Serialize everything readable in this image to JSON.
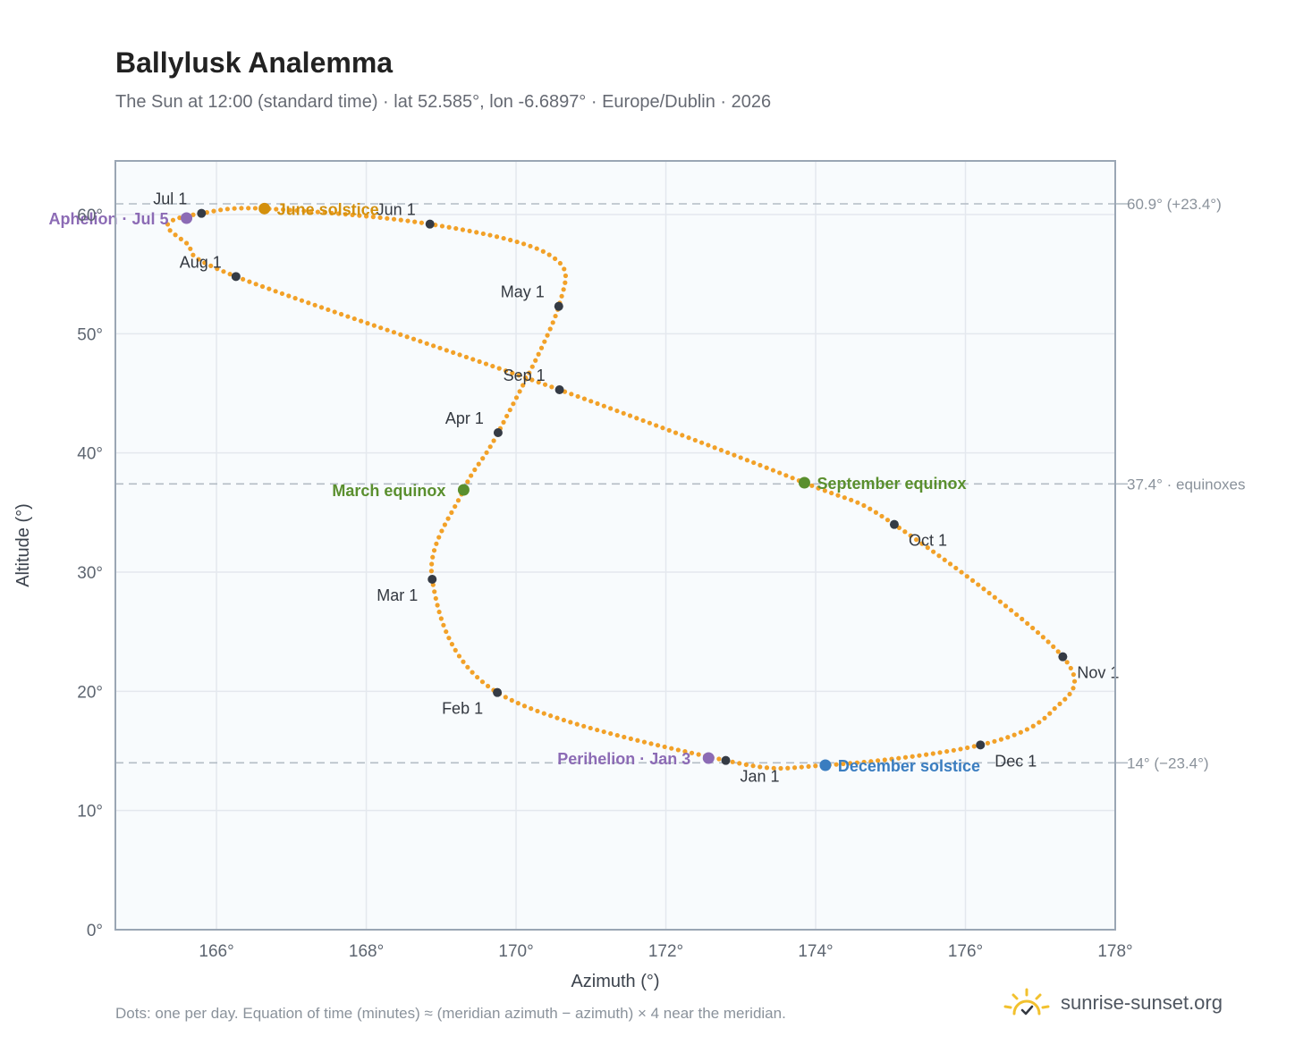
{
  "title": "Ballylusk Analemma",
  "subtitle": "The Sun at 12:00 (standard time) · lat 52.585°, lon -6.6897° · Europe/Dublin · 2026",
  "footnote": "Dots: one per day. Equation of time (minutes) ≈ (meridian azimuth − azimuth) × 4 near the meridian.",
  "brand": "sunrise-sunset.org",
  "colors": {
    "curve": "#f2a128",
    "month_marker": "#353b45",
    "solstice_june": "#d3900d",
    "solstice_december": "#3a7dc0",
    "equinox": "#5a8f2e",
    "apsis": "#8c6bb5",
    "grid": "#e4e8ee",
    "plot_background": "#f8fbfd",
    "frame": "#9aa6b4",
    "reference_line": "#b3bcc5",
    "brand_sun": "#f2c12e"
  },
  "chart_data": {
    "type": "scatter",
    "xlabel": "Azimuth (°)",
    "ylabel": "Altitude (°)",
    "xlim": [
      164.65,
      178
    ],
    "ylim": [
      0,
      64.5
    ],
    "xticks": [
      166,
      168,
      170,
      172,
      174,
      176,
      178
    ],
    "yticks": [
      0,
      10,
      20,
      30,
      40,
      50,
      60
    ],
    "xtick_suffix": "°",
    "ytick_suffix": "°",
    "grid": true,
    "reference_lines": [
      {
        "y": 60.9,
        "label": "60.9° (+23.4°)"
      },
      {
        "y": 37.4,
        "label": "37.4° · equinoxes"
      },
      {
        "y": 14.0,
        "label": "14° (−23.4°)"
      }
    ],
    "path_points": [
      {
        "x": 172.8,
        "y": 14.2
      },
      {
        "x": 169.75,
        "y": 19.9
      },
      {
        "x": 168.88,
        "y": 29.4
      },
      {
        "x": 169.3,
        "y": 36.9
      },
      {
        "x": 169.76,
        "y": 41.7
      },
      {
        "x": 170.57,
        "y": 52.3
      },
      {
        "x": 170.45,
        "y": 56.6
      },
      {
        "x": 168.85,
        "y": 59.2
      },
      {
        "x": 166.64,
        "y": 60.5
      },
      {
        "x": 165.8,
        "y": 60.1
      },
      {
        "x": 165.35,
        "y": 59.2
      },
      {
        "x": 165.6,
        "y": 57.6
      },
      {
        "x": 166.26,
        "y": 54.8
      },
      {
        "x": 170.58,
        "y": 45.3
      },
      {
        "x": 173.85,
        "y": 37.5
      },
      {
        "x": 175.05,
        "y": 34.0
      },
      {
        "x": 177.3,
        "y": 22.9
      },
      {
        "x": 177.15,
        "y": 18.3
      },
      {
        "x": 176.2,
        "y": 15.5
      },
      {
        "x": 174.13,
        "y": 13.8
      },
      {
        "x": 172.8,
        "y": 14.2
      }
    ],
    "month_markers": [
      {
        "label": "Jan 1",
        "x": 172.8,
        "y": 14.2,
        "label_pos": "below-right"
      },
      {
        "label": "Feb 1",
        "x": 169.75,
        "y": 19.9,
        "label_pos": "below-left"
      },
      {
        "label": "Mar 1",
        "x": 168.88,
        "y": 29.4,
        "label_pos": "below-left"
      },
      {
        "label": "Apr 1",
        "x": 169.76,
        "y": 41.7,
        "label_pos": "above-left"
      },
      {
        "label": "May 1",
        "x": 170.57,
        "y": 52.3,
        "label_pos": "above-left"
      },
      {
        "label": "Jun 1",
        "x": 168.85,
        "y": 59.2,
        "label_pos": "above-left"
      },
      {
        "label": "Jul 1",
        "x": 165.8,
        "y": 60.1,
        "label_pos": "above-left"
      },
      {
        "label": "Aug 1",
        "x": 166.26,
        "y": 54.8,
        "label_pos": "above-left"
      },
      {
        "label": "Sep 1",
        "x": 170.58,
        "y": 45.3,
        "label_pos": "above-left"
      },
      {
        "label": "Oct 1",
        "x": 175.05,
        "y": 34.0,
        "label_pos": "below-right"
      },
      {
        "label": "Nov 1",
        "x": 177.3,
        "y": 22.9,
        "label_pos": "below-right"
      },
      {
        "label": "Dec 1",
        "x": 176.2,
        "y": 15.5,
        "label_pos": "below-right"
      }
    ],
    "events": [
      {
        "label": "June solstice",
        "x": 166.64,
        "y": 60.5,
        "color": "solstice_june",
        "label_side": "right"
      },
      {
        "label": "December solstice",
        "x": 174.13,
        "y": 13.8,
        "color": "solstice_december",
        "label_side": "right"
      },
      {
        "label": "March equinox",
        "x": 169.3,
        "y": 36.9,
        "color": "equinox",
        "label_side": "left"
      },
      {
        "label": "September equinox",
        "x": 173.85,
        "y": 37.5,
        "color": "equinox",
        "label_side": "right"
      },
      {
        "label": "Aphelion · Jul 5",
        "x": 165.6,
        "y": 59.7,
        "color": "apsis",
        "label_side": "left"
      },
      {
        "label": "Perihelion · Jan 3",
        "x": 172.57,
        "y": 14.4,
        "color": "apsis",
        "label_side": "left"
      }
    ]
  }
}
